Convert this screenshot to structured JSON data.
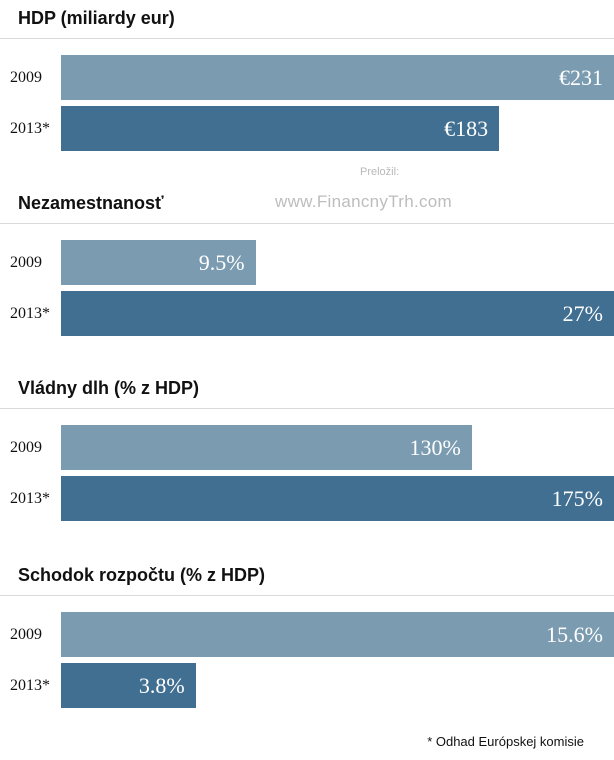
{
  "watermark": {
    "label": "Preložil:",
    "site": "www.FinancnyTrh.com"
  },
  "footnote": "* Odhad Európskej komisie",
  "colors": {
    "bar_2009": "#7b9bb0",
    "bar_2013": "#416f91",
    "value_text": "#ffffff"
  },
  "chart_data": [
    {
      "type": "bar",
      "orientation": "horizontal",
      "title": "HDP (miliardy eur)",
      "categories": [
        "2009",
        "2013*"
      ],
      "values": [
        231,
        183
      ],
      "value_labels": [
        "€231",
        "€183"
      ],
      "xlim": [
        0,
        231
      ]
    },
    {
      "type": "bar",
      "orientation": "horizontal",
      "title": "Nezamestnanosť",
      "categories": [
        "2009",
        "2013*"
      ],
      "values": [
        9.5,
        27
      ],
      "value_labels": [
        "9.5%",
        "27%"
      ],
      "xlim": [
        0,
        27
      ]
    },
    {
      "type": "bar",
      "orientation": "horizontal",
      "title": "Vládny dlh (% z HDP)",
      "categories": [
        "2009",
        "2013*"
      ],
      "values": [
        130,
        175
      ],
      "value_labels": [
        "130%",
        "175%"
      ],
      "xlim": [
        0,
        175
      ]
    },
    {
      "type": "bar",
      "orientation": "horizontal",
      "title": "Schodok rozpočtu (% z HDP)",
      "categories": [
        "2009",
        "2013*"
      ],
      "values": [
        15.6,
        3.8
      ],
      "value_labels": [
        "15.6%",
        "3.8%"
      ],
      "xlim": [
        0,
        15.6
      ]
    }
  ]
}
